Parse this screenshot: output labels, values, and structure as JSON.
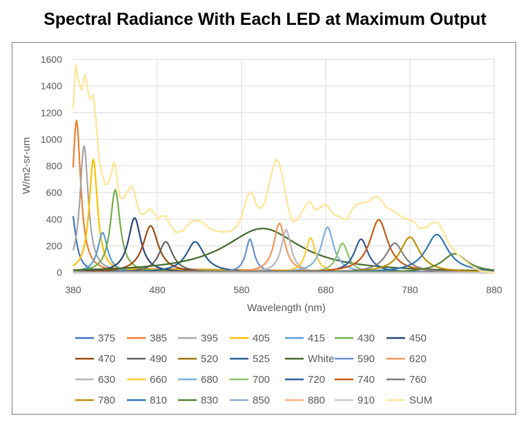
{
  "chart_data": {
    "type": "line",
    "title": "Spectral Radiance With Each LED at Maximum Output",
    "xlabel": "Wavelength (nm)",
    "ylabel": "W/m2-sr-um",
    "xlim": [
      380,
      880
    ],
    "ylim": [
      0,
      1600
    ],
    "x_ticks": [
      380,
      480,
      580,
      680,
      780,
      880
    ],
    "y_ticks": [
      0,
      200,
      400,
      600,
      800,
      1000,
      1200,
      1400,
      1600
    ],
    "grid": true,
    "legend_position": "bottom",
    "series": [
      {
        "name": "375",
        "color": "#4472C4",
        "peak_nm": 378,
        "peak_value": 470,
        "width_nm": 6
      },
      {
        "name": "385",
        "color": "#ED7D31",
        "peak_nm": 384,
        "peak_value": 1140,
        "width_nm": 6
      },
      {
        "name": "395",
        "color": "#A5A5A5",
        "peak_nm": 393,
        "peak_value": 950,
        "width_nm": 6
      },
      {
        "name": "405",
        "color": "#FFC000",
        "peak_nm": 404,
        "peak_value": 850,
        "width_nm": 6
      },
      {
        "name": "415",
        "color": "#5B9BD5",
        "peak_nm": 415,
        "peak_value": 300,
        "width_nm": 7
      },
      {
        "name": "430",
        "color": "#70AD47",
        "peak_nm": 430,
        "peak_value": 620,
        "width_nm": 7
      },
      {
        "name": "450",
        "color": "#264478",
        "peak_nm": 453,
        "peak_value": 410,
        "width_nm": 9
      },
      {
        "name": "470",
        "color": "#9E480E",
        "peak_nm": 472,
        "peak_value": 350,
        "width_nm": 11
      },
      {
        "name": "490",
        "color": "#636363",
        "peak_nm": 490,
        "peak_value": 230,
        "width_nm": 10
      },
      {
        "name": "520",
        "color": "#997300",
        "peak_nm": 520,
        "peak_value": 0,
        "width_nm": 10
      },
      {
        "name": "525",
        "color": "#255E91",
        "peak_nm": 525,
        "peak_value": 230,
        "width_nm": 13
      },
      {
        "name": "White",
        "color": "#43682B",
        "peak_nm": 605,
        "peak_value": 330,
        "width_nm": 55
      },
      {
        "name": "590",
        "color": "#698ED0",
        "peak_nm": 590,
        "peak_value": 250,
        "width_nm": 6
      },
      {
        "name": "620",
        "color": "#F1975A",
        "peak_nm": 625,
        "peak_value": 370,
        "width_nm": 8
      },
      {
        "name": "630",
        "color": "#B7B7B7",
        "peak_nm": 633,
        "peak_value": 320,
        "width_nm": 7
      },
      {
        "name": "660",
        "color": "#FFCD33",
        "peak_nm": 662,
        "peak_value": 260,
        "width_nm": 7
      },
      {
        "name": "680",
        "color": "#7CAFDD",
        "peak_nm": 682,
        "peak_value": 340,
        "width_nm": 9
      },
      {
        "name": "700",
        "color": "#8CC168",
        "peak_nm": 700,
        "peak_value": 220,
        "width_nm": 8
      },
      {
        "name": "720",
        "color": "#335AA1",
        "peak_nm": 722,
        "peak_value": 250,
        "width_nm": 10
      },
      {
        "name": "740",
        "color": "#C55A11",
        "peak_nm": 743,
        "peak_value": 395,
        "width_nm": 13
      },
      {
        "name": "760",
        "color": "#7F7F7F",
        "peak_nm": 762,
        "peak_value": 220,
        "width_nm": 13
      },
      {
        "name": "780",
        "color": "#BF9000",
        "peak_nm": 780,
        "peak_value": 265,
        "width_nm": 14
      },
      {
        "name": "810",
        "color": "#2E75B6",
        "peak_nm": 812,
        "peak_value": 285,
        "width_nm": 16
      },
      {
        "name": "830",
        "color": "#548235",
        "peak_nm": 833,
        "peak_value": 140,
        "width_nm": 18
      },
      {
        "name": "850",
        "color": "#8FAADC",
        "peak_nm": 850,
        "peak_value": 0,
        "width_nm": 18
      },
      {
        "name": "880",
        "color": "#F4B183",
        "peak_nm": 880,
        "peak_value": 0,
        "width_nm": 18
      },
      {
        "name": "910",
        "color": "#C9C9C9",
        "peak_nm": 910,
        "peak_value": 0,
        "width_nm": 18
      },
      {
        "name": "SUM",
        "color": "#FFE699",
        "values": [
          [
            380,
            1230
          ],
          [
            383,
            1560
          ],
          [
            386,
            1450
          ],
          [
            390,
            1370
          ],
          [
            394,
            1490
          ],
          [
            398,
            1350
          ],
          [
            400,
            1300
          ],
          [
            404,
            1330
          ],
          [
            407,
            1150
          ],
          [
            411,
            840
          ],
          [
            415,
            720
          ],
          [
            418,
            660
          ],
          [
            421,
            660
          ],
          [
            425,
            730
          ],
          [
            428,
            830
          ],
          [
            430,
            800
          ],
          [
            433,
            650
          ],
          [
            436,
            560
          ],
          [
            440,
            560
          ],
          [
            446,
            620
          ],
          [
            449,
            650
          ],
          [
            452,
            620
          ],
          [
            456,
            510
          ],
          [
            460,
            440
          ],
          [
            465,
            440
          ],
          [
            471,
            480
          ],
          [
            477,
            440
          ],
          [
            481,
            400
          ],
          [
            485,
            425
          ],
          [
            490,
            420
          ],
          [
            496,
            350
          ],
          [
            502,
            300
          ],
          [
            510,
            310
          ],
          [
            520,
            380
          ],
          [
            528,
            395
          ],
          [
            535,
            370
          ],
          [
            545,
            320
          ],
          [
            555,
            305
          ],
          [
            565,
            305
          ],
          [
            574,
            340
          ],
          [
            580,
            420
          ],
          [
            586,
            560
          ],
          [
            590,
            605
          ],
          [
            594,
            580
          ],
          [
            598,
            500
          ],
          [
            603,
            480
          ],
          [
            608,
            530
          ],
          [
            614,
            700
          ],
          [
            618,
            800
          ],
          [
            621,
            850
          ],
          [
            624,
            830
          ],
          [
            628,
            740
          ],
          [
            632,
            600
          ],
          [
            636,
            470
          ],
          [
            641,
            380
          ],
          [
            647,
            400
          ],
          [
            654,
            480
          ],
          [
            659,
            530
          ],
          [
            662,
            530
          ],
          [
            667,
            470
          ],
          [
            672,
            480
          ],
          [
            678,
            510
          ],
          [
            682,
            505
          ],
          [
            686,
            460
          ],
          [
            691,
            430
          ],
          [
            697,
            420
          ],
          [
            701,
            400
          ],
          [
            706,
            400
          ],
          [
            710,
            460
          ],
          [
            716,
            510
          ],
          [
            722,
            520
          ],
          [
            730,
            530
          ],
          [
            736,
            560
          ],
          [
            741,
            570
          ],
          [
            746,
            540
          ],
          [
            752,
            490
          ],
          [
            758,
            470
          ],
          [
            765,
            440
          ],
          [
            772,
            410
          ],
          [
            778,
            400
          ],
          [
            785,
            380
          ],
          [
            792,
            330
          ],
          [
            800,
            340
          ],
          [
            806,
            370
          ],
          [
            811,
            380
          ],
          [
            815,
            365
          ],
          [
            821,
            290
          ],
          [
            828,
            200
          ],
          [
            836,
            140
          ],
          [
            845,
            90
          ],
          [
            855,
            40
          ],
          [
            865,
            10
          ],
          [
            880,
            0
          ]
        ]
      }
    ]
  }
}
